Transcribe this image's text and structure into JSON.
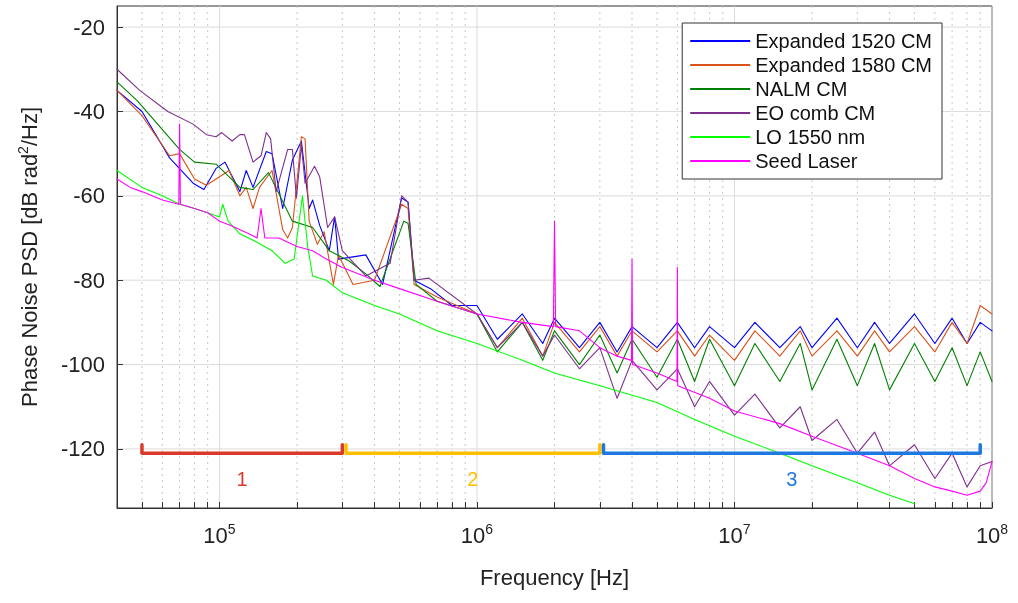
{
  "chart_data": {
    "type": "line",
    "xlabel": "Frequency [Hz]",
    "ylabel": "Phase Noise PSD [dB rad$^{2}$/Hz]",
    "log": "x",
    "grid": true,
    "legend": "top right",
    "marker": "none",
    "line_style": "solid",
    "xlim": [
      40000,
      100000000
    ],
    "xticks": [
      {
        "value": 50000,
        "label": null
      },
      {
        "value": 60000,
        "label": null
      },
      {
        "value": 70000,
        "label": null
      },
      {
        "value": 80000,
        "label": null
      },
      {
        "value": 90000,
        "label": null
      },
      {
        "value": 100000,
        "label": "10$^{5}$"
      },
      {
        "value": 200000,
        "label": null
      },
      {
        "value": 300000,
        "label": null
      },
      {
        "value": 400000,
        "label": null
      },
      {
        "value": 500000,
        "label": null
      },
      {
        "value": 600000,
        "label": null
      },
      {
        "value": 700000,
        "label": null
      },
      {
        "value": 800000,
        "label": null
      },
      {
        "value": 900000,
        "label": null
      },
      {
        "value": 1000000,
        "label": "10$^{6}$"
      },
      {
        "value": 2000000,
        "label": null
      },
      {
        "value": 3000000,
        "label": null
      },
      {
        "value": 4000000,
        "label": null
      },
      {
        "value": 5000000,
        "label": null
      },
      {
        "value": 6000000,
        "label": null
      },
      {
        "value": 7000000,
        "label": null
      },
      {
        "value": 8000000,
        "label": null
      },
      {
        "value": 9000000,
        "label": null
      },
      {
        "value": 10000000,
        "label": "10$^{7}$"
      },
      {
        "value": 20000000,
        "label": null
      },
      {
        "value": 30000000,
        "label": null
      },
      {
        "value": 40000000,
        "label": null
      },
      {
        "value": 50000000,
        "label": null
      },
      {
        "value": 60000000,
        "label": null
      },
      {
        "value": 70000000,
        "label": null
      },
      {
        "value": 80000000,
        "label": null
      },
      {
        "value": 90000000,
        "label": null
      },
      {
        "value": 100000000,
        "label": "10$^{8}$"
      }
    ],
    "ylim": [
      -134,
      -15
    ],
    "yticks": [
      -120,
      -100,
      -80,
      -60,
      -40,
      -20
    ],
    "series": [
      {
        "name": "Expanded 1520 CM",
        "color": "#0000ff",
        "x": [
          40000,
          50000,
          64000,
          79000,
          87000,
          97000,
          105000,
          120000,
          127000,
          135000,
          152000,
          160000,
          176000,
          192000,
          208000,
          223000,
          230000,
          245000,
          267000,
          280000,
          290000,
          370000,
          430000,
          510000,
          540000,
          570000,
          660000,
          800000,
          1000000,
          1200000,
          1500000,
          1800000,
          2000000,
          2500000,
          3000000,
          3500000,
          4000000,
          5000000,
          6000000,
          7000000,
          8000000,
          10000000,
          12000000,
          15000000,
          18000000,
          20000000,
          25000000,
          30000000,
          35000000,
          40000000,
          50000000,
          60000000,
          70000000,
          80000000,
          90000000,
          100000000
        ],
        "values": [
          -35,
          -40,
          -51,
          -57,
          -58.5,
          -53.5,
          -52,
          -59,
          -54,
          -58,
          -49.5,
          -50,
          -63,
          -51.5,
          -47,
          -63,
          -61,
          -67,
          -73,
          -65,
          -75,
          -74,
          -81,
          -60.5,
          -61.5,
          -80,
          -82,
          -86,
          -86,
          -94,
          -88,
          -95,
          -89,
          -96,
          -90,
          -97,
          -91,
          -96,
          -90,
          -96,
          -91,
          -96,
          -90,
          -96,
          -91,
          -96,
          -89,
          -96,
          -90,
          -95,
          -88,
          -95,
          -89,
          -95,
          -90,
          -92
        ]
      },
      {
        "name": "Expanded 1580 CM",
        "color": "#d95319",
        "x": [
          40000,
          50000,
          64000,
          70000,
          80000,
          89000,
          109000,
          120000,
          127000,
          135000,
          143000,
          160000,
          176000,
          184000,
          192000,
          208000,
          215000,
          223000,
          240000,
          255000,
          277000,
          290000,
          330000,
          400000,
          510000,
          540000,
          570000,
          700000,
          1000000,
          1200000,
          1500000,
          1800000,
          2000000,
          2500000,
          3000000,
          3500000,
          4000000,
          5000000,
          6000000,
          7000000,
          8000000,
          10000000,
          12000000,
          15000000,
          18000000,
          20000000,
          25000000,
          30000000,
          35000000,
          40000000,
          50000000,
          60000000,
          70000000,
          80000000,
          90000000,
          100000000
        ],
        "values": [
          -35,
          -41,
          -50.5,
          -50,
          -56,
          -57.5,
          -54,
          -60,
          -58,
          -63,
          -58,
          -54,
          -68,
          -70,
          -67.5,
          -46,
          -46.5,
          -66,
          -71.5,
          -68.5,
          -81,
          -74,
          -81,
          -80,
          -62,
          -63,
          -81,
          -84,
          -88,
          -96,
          -89,
          -98,
          -90,
          -97,
          -91,
          -98,
          -92,
          -97,
          -92,
          -98,
          -93,
          -99,
          -92,
          -98,
          -92,
          -98,
          -92,
          -98,
          -92,
          -97,
          -91,
          -97,
          -90,
          -95,
          -86,
          -88
        ]
      },
      {
        "name": "NALM CM",
        "color": "#008000",
        "x": [
          40000,
          48000,
          70000,
          80000,
          97000,
          120000,
          135000,
          155000,
          192000,
          230000,
          267000,
          320000,
          370000,
          420000,
          520000,
          540000,
          580000,
          700000,
          1000000,
          1200000,
          1500000,
          1800000,
          2000000,
          2500000,
          3000000,
          3500000,
          4000000,
          5000000,
          6000000,
          7000000,
          8000000,
          10000000,
          12000000,
          15000000,
          18000000,
          20000000,
          25000000,
          30000000,
          35000000,
          40000000,
          50000000,
          60000000,
          70000000,
          80000000,
          90000000,
          100000000
        ],
        "values": [
          -33,
          -37.5,
          -49,
          -52,
          -52.5,
          -58,
          -58.5,
          -54.5,
          -66,
          -67.5,
          -73,
          -75.5,
          -78.5,
          -81.5,
          -66,
          -66.5,
          -81,
          -85,
          -88,
          -97,
          -90,
          -99,
          -92,
          -100,
          -93,
          -102,
          -94,
          -103,
          -94,
          -104,
          -94,
          -105,
          -95,
          -104,
          -95,
          -106,
          -94,
          -105,
          -95,
          -106,
          -95,
          -104,
          -96,
          -105,
          -97,
          -104
        ]
      },
      {
        "name": "EO comb CM",
        "color": "#7e2f8e",
        "x": [
          40000,
          49000,
          63000,
          79000,
          89000,
          97000,
          102000,
          112000,
          120000,
          125000,
          135000,
          145000,
          152000,
          158000,
          166000,
          184000,
          192000,
          199000,
          208000,
          215000,
          234000,
          245000,
          263000,
          280000,
          300000,
          370000,
          460000,
          510000,
          540000,
          570000,
          650000,
          1000000,
          1200000,
          1500000,
          1800000,
          2000000,
          2500000,
          3000000,
          3500000,
          4000000,
          5000000,
          6000000,
          7000000,
          8000000,
          10000000,
          12000000,
          15000000,
          18000000,
          20000000,
          25000000,
          30000000,
          35000000,
          40000000,
          50000000,
          60000000,
          70000000,
          80000000,
          90000000,
          100000000
        ],
        "values": [
          -30,
          -35,
          -40,
          -43,
          -45.5,
          -46,
          -45,
          -47,
          -45.5,
          -45.5,
          -52,
          -50.5,
          -45,
          -46.5,
          -59,
          -49,
          -49,
          -60.5,
          -48,
          -57,
          -53,
          -55.5,
          -67.5,
          -65,
          -73,
          -79,
          -76,
          -60,
          -61.5,
          -80,
          -79.5,
          -88,
          -96,
          -90,
          -98,
          -93,
          -101,
          -96,
          -108,
          -99,
          -106,
          -101,
          -110,
          -104,
          -112,
          -107,
          -115,
          -110,
          -118,
          -113,
          -121,
          -116,
          -124,
          -119,
          -127,
          -121,
          -129,
          -124,
          -123
        ]
      },
      {
        "name": "LO 1550 nm",
        "color": "#00ff00",
        "x": [
          40000,
          50000,
          60000,
          70000,
          80000,
          90000,
          100000,
          103000,
          108000,
          120000,
          140000,
          160000,
          180000,
          195000,
          210000,
          220000,
          230000,
          260000,
          300000,
          400000,
          500000,
          700000,
          1000000,
          1500000,
          2000000,
          3000000,
          5000000,
          7000000,
          10000000,
          15000000,
          20000000,
          30000000,
          40000000,
          50000000
        ],
        "values": [
          -54,
          -58,
          -60,
          -62,
          -63,
          -64,
          -65,
          -62,
          -66,
          -69,
          -71,
          -73,
          -76,
          -75,
          -60,
          -72,
          -79,
          -80,
          -83,
          -86,
          -88,
          -92,
          -95,
          -99,
          -102,
          -105,
          -109,
          -113,
          -117,
          -121,
          -124,
          -128,
          -131,
          -133
        ]
      },
      {
        "name": "Seed Laser",
        "color": "#ff00ff",
        "x": [
          40000,
          45000,
          50000,
          60000,
          69500,
          70000,
          70500,
          80000,
          90000,
          100000,
          110000,
          130000,
          140000,
          145000,
          150000,
          170000,
          200000,
          230000,
          260000,
          300000,
          400000,
          500000,
          700000,
          1000000,
          1500000,
          1980000,
          2000000,
          2020000,
          2500000,
          3000000,
          3500000,
          3980000,
          4000000,
          4020000,
          5000000,
          5980000,
          6000000,
          6020000,
          8000000,
          10000000,
          15000000,
          20000000,
          30000000,
          40000000,
          50000000,
          60000000,
          70000000,
          80000000,
          90000000,
          95000000,
          100000000
        ],
        "values": [
          -56,
          -58,
          -59,
          -61,
          -62,
          -43,
          -62,
          -63,
          -64,
          -66,
          -67,
          -69,
          -70,
          -63,
          -70,
          -70,
          -72,
          -73,
          -75,
          -77,
          -80,
          -82,
          -85,
          -88,
          -90,
          -91,
          -66,
          -91,
          -92,
          -96,
          -98,
          -99,
          -75,
          -100,
          -102,
          -104,
          -77,
          -105,
          -108,
          -111,
          -114,
          -117,
          -121,
          -124,
          -127,
          -129,
          -130,
          -131,
          -130,
          -128,
          -123
        ]
      },
      {
        "color": "#d93a2b",
        "x": [
          50000,
          50000,
          300000,
          300000
        ],
        "values": [
          -119,
          -121,
          -121,
          -119
        ]
      },
      {
        "color": "#ffbf00",
        "x": [
          310000,
          310000,
          3000000,
          3000000
        ],
        "values": [
          -119,
          -121,
          -121,
          -119
        ]
      },
      {
        "color": "#1f78e0",
        "x": [
          3100000,
          3100000,
          90000000,
          90000000
        ],
        "values": [
          -119,
          -121,
          -121,
          -119
        ]
      }
    ],
    "annotations": [
      "1",
      "2",
      "3"
    ]
  }
}
